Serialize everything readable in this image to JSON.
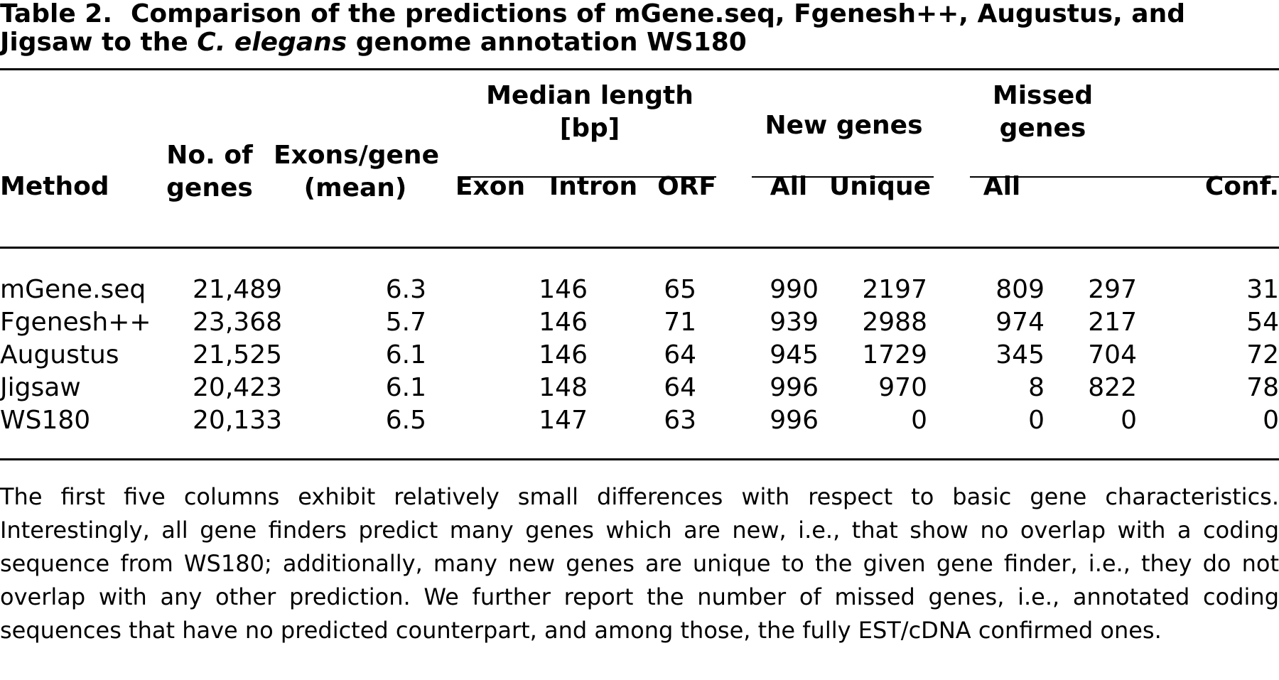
{
  "caption": {
    "label": "Table 2.",
    "text_before": "Comparison of the predictions of mGene.seq, Fgenesh++, Augustus, and Jigsaw to the",
    "italic": "C. elegans",
    "text_after": "genome annotation WS180"
  },
  "headers": {
    "method": "Method",
    "no_genes_line1": "No. of",
    "no_genes_line2": "genes",
    "exons_line1": "Exons/gene",
    "exons_line2": "(mean)",
    "median_line1": "Median length",
    "median_line2": "[bp]",
    "new_genes": "New genes",
    "missed_line1": "Missed",
    "missed_line2": "genes",
    "exon": "Exon",
    "intron": "Intron",
    "orf": "ORF",
    "new_all": "All",
    "new_unique": "Unique",
    "missed_all": "All",
    "missed_conf": "Conf."
  },
  "rows": [
    [
      "mGene.seq",
      "21,489",
      "6.3",
      "146",
      "65",
      "990",
      "2197",
      "809",
      "297",
      "31"
    ],
    [
      "Fgenesh++",
      "23,368",
      "5.7",
      "146",
      "71",
      "939",
      "2988",
      "974",
      "217",
      "54"
    ],
    [
      "Augustus",
      "21,525",
      "6.1",
      "146",
      "64",
      "945",
      "1729",
      "345",
      "704",
      "72"
    ],
    [
      "Jigsaw",
      "20,423",
      "6.1",
      "148",
      "64",
      "996",
      "970",
      "8",
      "822",
      "78"
    ],
    [
      "WS180",
      "20,133",
      "6.5",
      "147",
      "63",
      "996",
      "0",
      "0",
      "0",
      "0"
    ]
  ],
  "footnote": "The first five columns exhibit relatively small differences with respect to basic gene characteristics. Interestingly, all gene finders predict many genes which are new, i.e., that show no overlap with a coding sequence from WS180; additionally, many new genes are unique to the given gene finder, i.e., they do not overlap with any other prediction. We further report the number of missed genes, i.e., annotated coding sequences that have no predicted counterpart, and among those, the fully EST/cDNA confirmed ones."
}
